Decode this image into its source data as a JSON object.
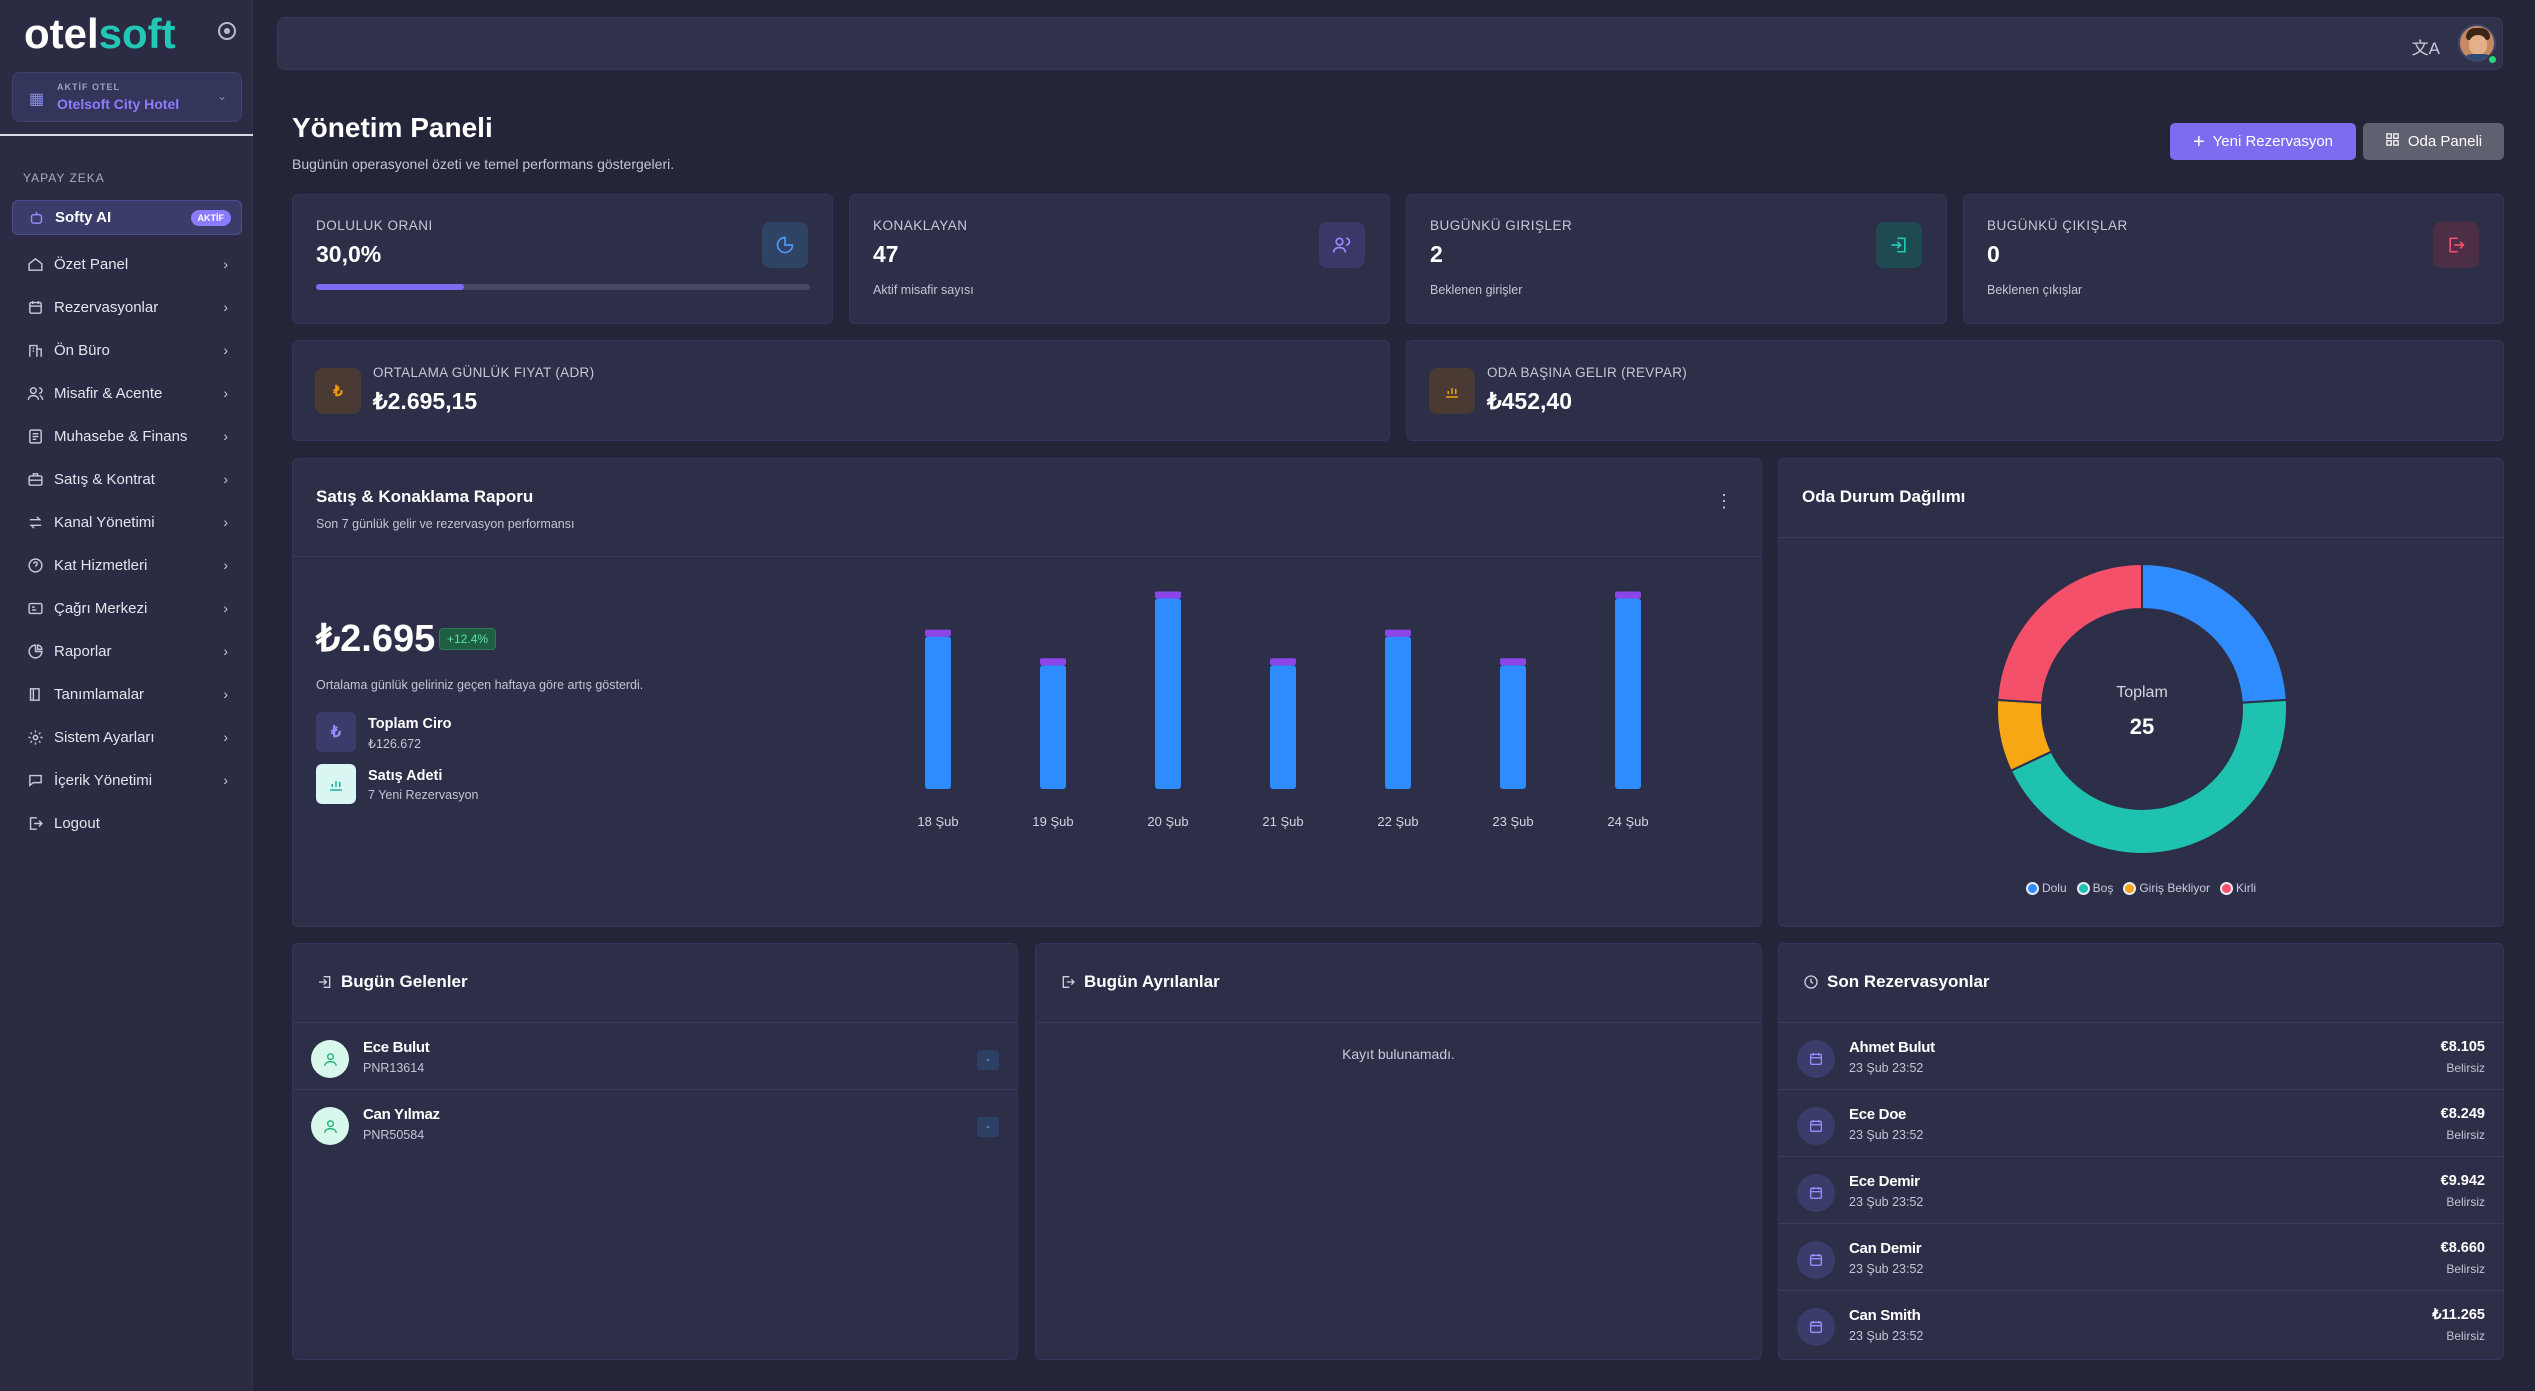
{
  "brand": {
    "logo_main": "otel",
    "logo_accent": "soft"
  },
  "hotel": {
    "key": "AKTİF OTEL",
    "name": "Otelsoft City Hotel"
  },
  "sidebar": {
    "section": "YAPAY ZEKA",
    "items": [
      {
        "label": "Softy AI",
        "badge": "AKTİF",
        "icon": "robot-icon"
      },
      {
        "label": "Özet Panel",
        "icon": "home-icon"
      },
      {
        "label": "Rezervasyonlar",
        "icon": "calendar-icon"
      },
      {
        "label": "Ön Büro",
        "icon": "building-icon"
      },
      {
        "label": "Misafir & Acente",
        "icon": "users-icon"
      },
      {
        "label": "Muhasebe & Finans",
        "icon": "ledger-icon"
      },
      {
        "label": "Satış & Kontrat",
        "icon": "briefcase-icon"
      },
      {
        "label": "Kanal Yönetimi",
        "icon": "swap-icon"
      },
      {
        "label": "Kat Hizmetleri",
        "icon": "help-circle-icon"
      },
      {
        "label": "Çağrı Merkezi",
        "icon": "headset-icon"
      },
      {
        "label": "Raporlar",
        "icon": "pie-icon"
      },
      {
        "label": "Tanımlamalar",
        "icon": "book-icon"
      },
      {
        "label": "Sistem Ayarları",
        "icon": "gear-icon"
      },
      {
        "label": "İçerik Yönetimi",
        "icon": "message-icon"
      },
      {
        "label": "Logout",
        "icon": "logout-icon"
      }
    ]
  },
  "topbar": {
    "lang_icon": "translate-icon"
  },
  "header": {
    "title": "Yönetim Paneli",
    "subtitle": "Bugünün operasyonel özeti ve temel performans göstergeleri.",
    "primary_btn": "Yeni Rezervasyon",
    "secondary_btn": "Oda Paneli"
  },
  "kpis": [
    {
      "label": "DOLULUK ORANI",
      "value": "30,0%",
      "progress": 30,
      "color": "#3b82f6"
    },
    {
      "label": "KONAKLAYAN",
      "value": "47",
      "sub": "Aktif misafir sayısı",
      "color": "#8b7bff"
    },
    {
      "label": "BUGÜNKÜ GIRIŞLER",
      "value": "2",
      "sub": "Beklenen girişler",
      "color": "#23c7b6"
    },
    {
      "label": "BUGÜNKÜ ÇIKIŞLAR",
      "value": "0",
      "sub": "Beklenen çıkışlar",
      "color": "#f0506e"
    }
  ],
  "kpis2": [
    {
      "label": "ORTALAMA GÜNLÜK FIYAT (ADR)",
      "value": "₺2.695,15",
      "color": "#f59e0b"
    },
    {
      "label": "ODA BAŞINA GELIR (REVPAR)",
      "value": "₺452,40",
      "color": "#f59e0b"
    }
  ],
  "report": {
    "title": "Satış & Konaklama Raporu",
    "subtitle": "Son 7 günlük gelir ve rezervasyon performansı",
    "amount": "₺2.695",
    "growth": "+12.4%",
    "note": "Ortalama günlük geliriniz geçen haftaya göre artış gösterdi.",
    "total_label": "Toplam Ciro",
    "total_value": "₺126.672",
    "sales_label": "Satış Adeti",
    "sales_value": "7 Yeni Rezervasyon"
  },
  "chart_data": [
    {
      "type": "bar",
      "title": "",
      "categories": [
        "18 Şub",
        "19 Şub",
        "20 Şub",
        "21 Şub",
        "22 Şub",
        "23 Şub",
        "24 Şub"
      ],
      "series": [
        {
          "values": [
            16,
            13,
            20,
            13,
            16,
            13,
            20
          ],
          "color": "#2f8cff"
        },
        {
          "values": [
            0.6,
            0.6,
            0.6,
            0.6,
            0.6,
            0.6,
            0.6
          ],
          "color": "#8b45e8"
        }
      ],
      "ylim": [
        0,
        21
      ],
      "grid": false
    },
    {
      "type": "pie",
      "title": "Oda Durum Dağılımı",
      "center_label": "Toplam",
      "center_value": "25",
      "labels": [
        "Dolu",
        "Boş",
        "Giriş Bekliyor",
        "Kirli"
      ],
      "values": [
        6,
        11,
        2,
        6
      ],
      "colors": [
        "#2f8cff",
        "#1ec2ae",
        "#f7a614",
        "#f5506a"
      ],
      "legend": "bottom"
    }
  ],
  "arrivals": {
    "title": "Bugün Gelenler",
    "rows": [
      {
        "name": "Ece Bulut",
        "pnr": "PNR13614",
        "tag": "-"
      },
      {
        "name": "Can Yılmaz",
        "pnr": "PNR50584",
        "tag": "-"
      }
    ]
  },
  "departures": {
    "title": "Bugün Ayrılanlar",
    "empty": "Kayıt bulunamadı."
  },
  "recent": {
    "title": "Son Rezervasyonlar",
    "rows": [
      {
        "name": "Ahmet Bulut",
        "date": "23 Şub 23:52",
        "amount": "€8.105",
        "status": "Belirsiz"
      },
      {
        "name": "Ece Doe",
        "date": "23 Şub 23:52",
        "amount": "€8.249",
        "status": "Belirsiz"
      },
      {
        "name": "Ece Demir",
        "date": "23 Şub 23:52",
        "amount": "€9.942",
        "status": "Belirsiz"
      },
      {
        "name": "Can Demir",
        "date": "23 Şub 23:52",
        "amount": "€8.660",
        "status": "Belirsiz"
      },
      {
        "name": "Can Smith",
        "date": "23 Şub 23:52",
        "amount": "₺11.265",
        "status": "Belirsiz"
      }
    ]
  }
}
